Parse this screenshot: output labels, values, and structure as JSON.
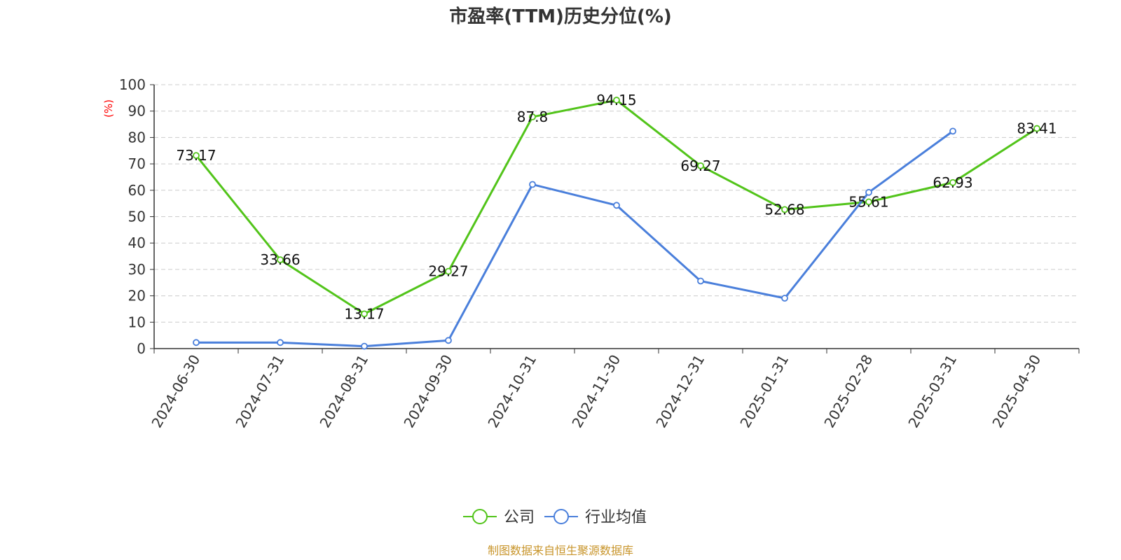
{
  "chart_data": {
    "type": "line",
    "title": "市盈率(TTM)历史分位(%)",
    "ylabel": "(%)",
    "xlabel": "",
    "ylim": [
      0,
      100
    ],
    "yticks": [
      0,
      10,
      20,
      30,
      40,
      50,
      60,
      70,
      80,
      90,
      100
    ],
    "grid": true,
    "legend_position": "bottom-center",
    "categories": [
      "2024-06-30",
      "2024-07-31",
      "2024-08-31",
      "2024-09-30",
      "2024-10-31",
      "2024-11-30",
      "2024-12-31",
      "2025-01-31",
      "2025-02-28",
      "2025-03-31",
      "2025-04-30"
    ],
    "series": [
      {
        "name": "公司",
        "color": "#52c41a",
        "values": [
          73.17,
          33.66,
          13.17,
          29.27,
          87.8,
          94.15,
          69.27,
          52.68,
          55.61,
          62.93,
          83.41
        ],
        "data_labels": [
          "73.17",
          "33.66",
          "13.17",
          "29.27",
          "87.8",
          "94.15",
          "69.27",
          "52.68",
          "55.61",
          "62.93",
          "83.41"
        ]
      },
      {
        "name": "行业均值",
        "color": "#4a7fdb",
        "values": [
          2.3,
          2.3,
          0.9,
          3.1,
          62.2,
          54.3,
          25.6,
          19.1,
          59.2,
          82.4,
          null
        ]
      }
    ],
    "source": "制图数据来自恒生聚源数据库"
  }
}
